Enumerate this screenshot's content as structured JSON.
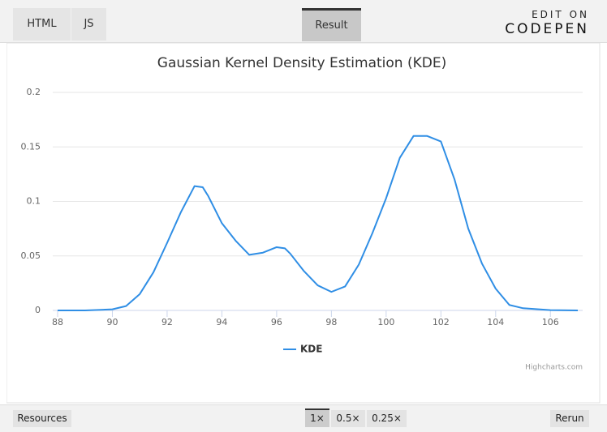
{
  "ui": {
    "tabs": [
      "HTML",
      "JS"
    ],
    "result_tab": "Result",
    "edit_on": "EDIT ON",
    "brand": "CODEPEN",
    "footer": {
      "resources": "Resources",
      "zoom": [
        "1×",
        "0.5×",
        "0.25×"
      ],
      "rerun": "Rerun"
    }
  },
  "chart_data": {
    "type": "line",
    "title": "Gaussian Kernel Density Estimation (KDE)",
    "credits": "Highcharts.com",
    "x": [
      88,
      89,
      90,
      90.5,
      91,
      91.5,
      92,
      92.5,
      93,
      93.3,
      93.5,
      94,
      94.5,
      95,
      95.5,
      96,
      96.3,
      96.5,
      97,
      97.5,
      98,
      98.5,
      99,
      99.5,
      100,
      100.5,
      101,
      101.5,
      102,
      102.5,
      103,
      103.5,
      104,
      104.5,
      105,
      106,
      107
    ],
    "series": [
      {
        "name": "KDE",
        "color": "#2f8ee5",
        "values": [
          0,
          0,
          0.001,
          0.004,
          0.015,
          0.035,
          0.062,
          0.09,
          0.114,
          0.113,
          0.105,
          0.08,
          0.064,
          0.051,
          0.053,
          0.058,
          0.057,
          0.052,
          0.036,
          0.023,
          0.017,
          0.022,
          0.042,
          0.071,
          0.103,
          0.14,
          0.16,
          0.16,
          0.155,
          0.12,
          0.075,
          0.043,
          0.02,
          0.005,
          0.002,
          0.0003,
          0
        ]
      }
    ],
    "xlim": [
      88,
      107
    ],
    "xticks": [
      88,
      90,
      92,
      94,
      96,
      98,
      100,
      102,
      104,
      106
    ],
    "ylim": [
      0,
      0.2
    ],
    "yticks": [
      0,
      0.05,
      0.1,
      0.15,
      0.2
    ],
    "grid": true,
    "legend": "bottom"
  }
}
